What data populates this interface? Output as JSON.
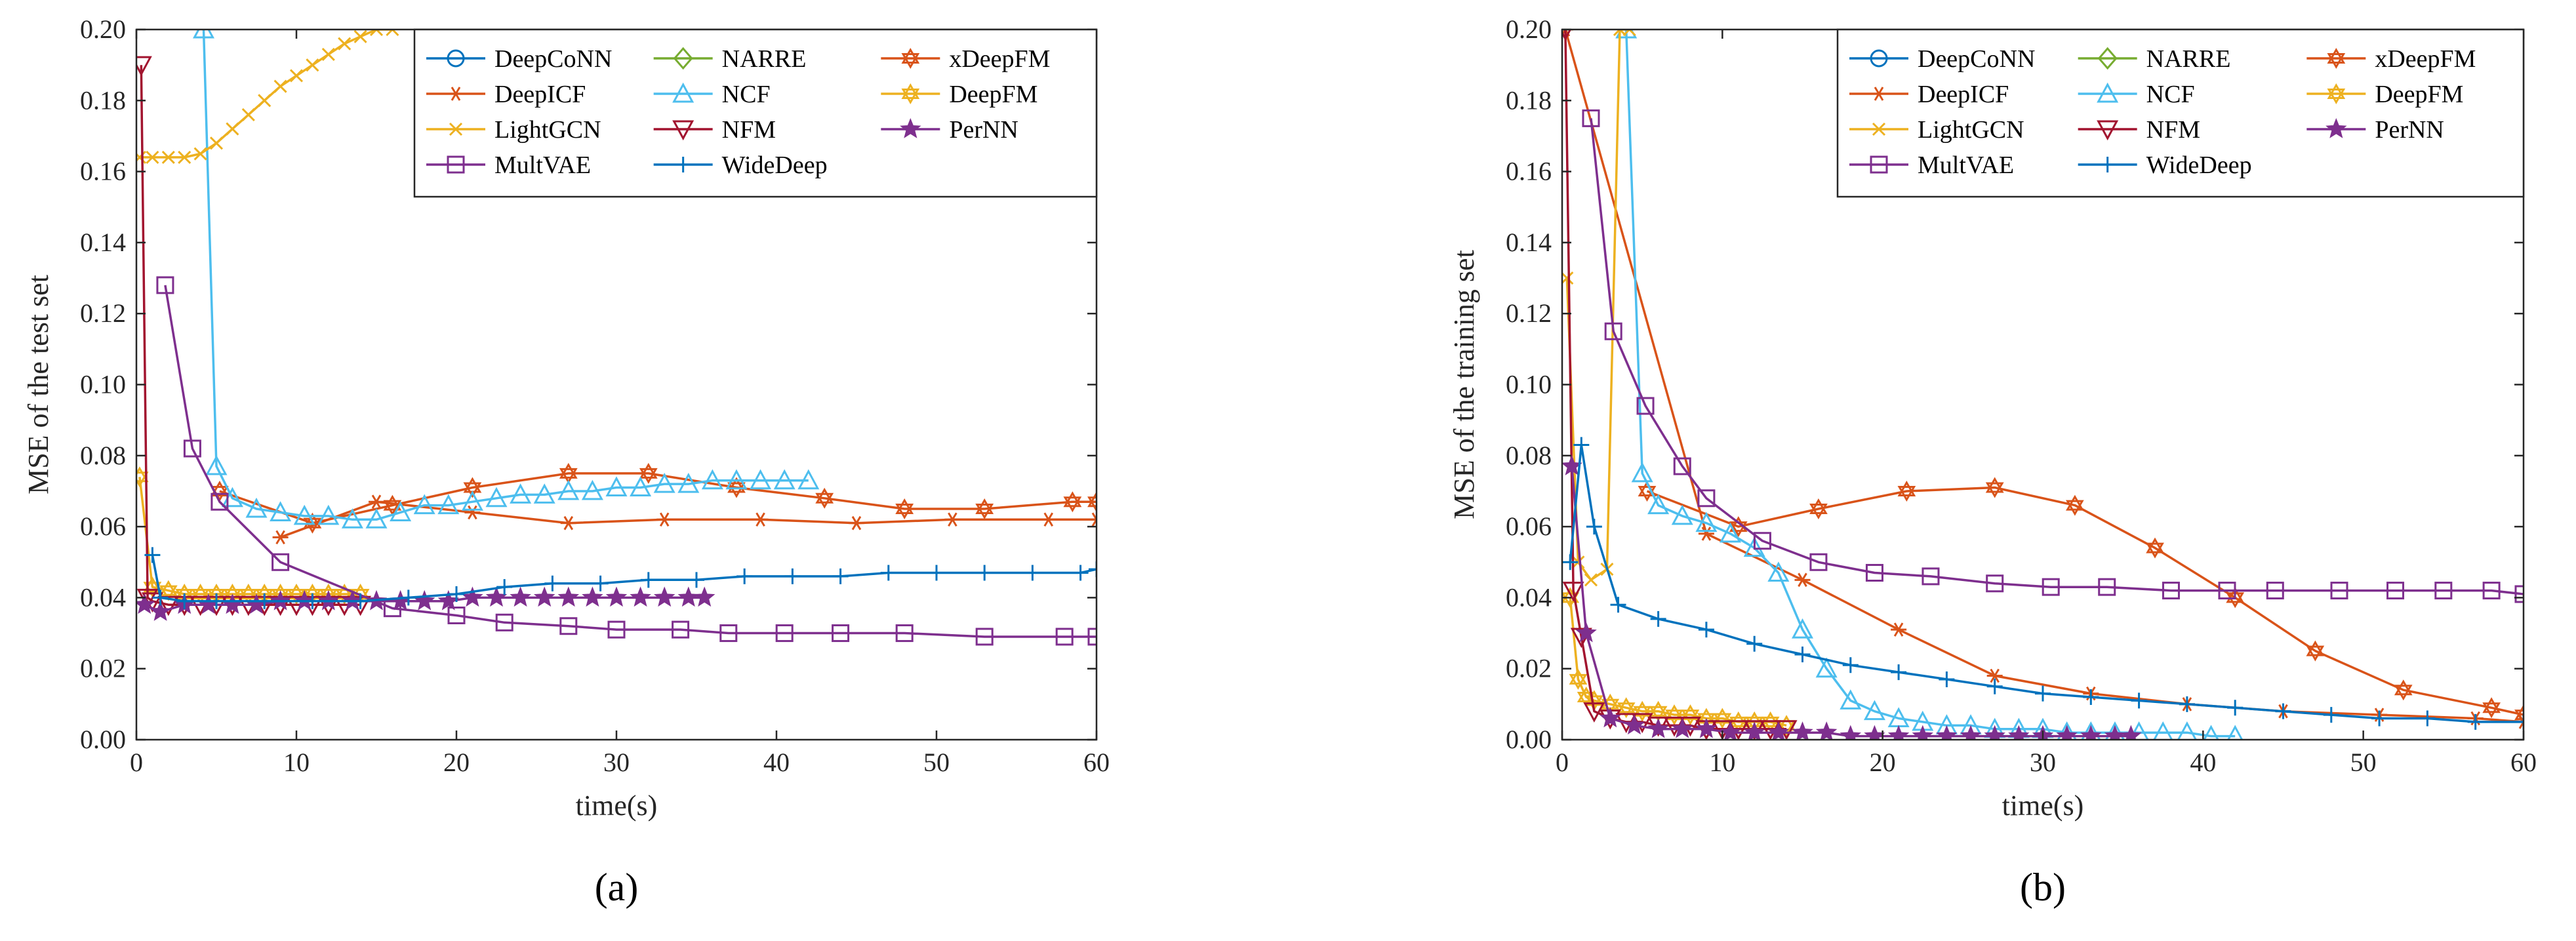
{
  "colors": {
    "DeepCoNN": "#0072BD",
    "NARRE": "#77AC30",
    "xDeepFM": "#D95319",
    "DeepICF": "#D95319",
    "NCF": "#4DBEEE",
    "DeepFM": "#EDB120",
    "LightGCN": "#EDB120",
    "NFM": "#A2142F",
    "PerNN": "#7E2F8E",
    "MultVAE": "#7E2F8E",
    "WideDeep": "#0072BD"
  },
  "chart_data": [
    {
      "type": "line",
      "panel_label": "(a)",
      "xlabel": "time(s)",
      "ylabel": "MSE of the test set",
      "xlim": [
        0,
        60
      ],
      "ylim": [
        0,
        0.2
      ],
      "xticks": [
        "0",
        "10",
        "20",
        "30",
        "40",
        "50",
        "60"
      ],
      "yticks": [
        "0.00",
        "0.02",
        "0.04",
        "0.06",
        "0.08",
        "0.10",
        "0.12",
        "0.14",
        "0.16",
        "0.18",
        "0.20"
      ],
      "legend_position": "top-right",
      "legend": [
        "DeepCoNN",
        "NARRE",
        "xDeepFM",
        "DeepICF",
        "NCF",
        "DeepFM",
        "LightGCN",
        "NFM",
        "PerNN",
        "MultVAE",
        "WideDeep"
      ],
      "series": [
        {
          "name": "DeepCoNN",
          "marker": "circle",
          "color": "#0072BD",
          "x": [],
          "y": []
        },
        {
          "name": "NARRE",
          "marker": "diamond",
          "color": "#77AC30",
          "x": [],
          "y": []
        },
        {
          "name": "xDeepFM",
          "marker": "hexagram",
          "color": "#D95319",
          "x": [
            5.2,
            11,
            16,
            21,
            27,
            32,
            37.5,
            43,
            48,
            53,
            58.5,
            60
          ],
          "y": [
            0.07,
            0.061,
            0.066,
            0.071,
            0.075,
            0.075,
            0.071,
            0.068,
            0.065,
            0.065,
            0.067,
            0.067
          ]
        },
        {
          "name": "DeepICF",
          "marker": "asterisk",
          "color": "#D95319",
          "x": [
            9,
            15,
            21,
            27,
            33,
            39,
            45,
            51,
            57,
            60
          ],
          "y": [
            0.057,
            0.067,
            0.064,
            0.061,
            0.062,
            0.062,
            0.061,
            0.062,
            0.062,
            0.062
          ]
        },
        {
          "name": "NCF",
          "marker": "triangle",
          "color": "#4DBEEE",
          "x": [
            4.2,
            5,
            6,
            7.5,
            9,
            10.5,
            12,
            13.5,
            15,
            16.5,
            18,
            19.5,
            21,
            22.5,
            24,
            25.5,
            27,
            28.5,
            30,
            31.5,
            33,
            34.5,
            36,
            37.5,
            39,
            40.5,
            42
          ],
          "y": [
            0.2,
            0.077,
            0.068,
            0.065,
            0.064,
            0.063,
            0.063,
            0.062,
            0.062,
            0.064,
            0.066,
            0.066,
            0.067,
            0.068,
            0.069,
            0.069,
            0.07,
            0.07,
            0.071,
            0.071,
            0.072,
            0.072,
            0.073,
            0.073,
            0.073,
            0.073,
            0.073
          ]
        },
        {
          "name": "DeepFM",
          "marker": "hexagram",
          "color": "#EDB120",
          "x": [
            0.2,
            1,
            2,
            3,
            4,
            5,
            6,
            7,
            8,
            9,
            10,
            11,
            12,
            13,
            14
          ],
          "y": [
            0.074,
            0.043,
            0.042,
            0.041,
            0.041,
            0.041,
            0.041,
            0.041,
            0.041,
            0.041,
            0.041,
            0.041,
            0.041,
            0.041,
            0.041
          ]
        },
        {
          "name": "LightGCN",
          "marker": "x",
          "color": "#EDB120",
          "x": [
            0.2,
            1,
            2,
            3,
            4,
            5,
            6,
            7,
            8,
            9,
            10,
            11,
            12,
            13,
            14,
            15,
            16
          ],
          "y": [
            0.164,
            0.164,
            0.164,
            0.164,
            0.165,
            0.168,
            0.172,
            0.176,
            0.18,
            0.184,
            0.187,
            0.19,
            0.193,
            0.196,
            0.198,
            0.2,
            0.2
          ]
        },
        {
          "name": "NFM",
          "marker": "triangle-down",
          "color": "#A2142F",
          "x": [
            0.3,
            0.7,
            1,
            2,
            3,
            4,
            5,
            6,
            7,
            8,
            9,
            10,
            11,
            12,
            13,
            14
          ],
          "y": [
            0.19,
            0.04,
            0.039,
            0.038,
            0.038,
            0.038,
            0.038,
            0.038,
            0.038,
            0.038,
            0.038,
            0.038,
            0.038,
            0.038,
            0.038,
            0.038
          ]
        },
        {
          "name": "PerNN",
          "marker": "star",
          "color": "#7E2F8E",
          "x": [
            0.5,
            1.5,
            3,
            4.5,
            6,
            7.5,
            9,
            10.5,
            12,
            13.5,
            15,
            16.5,
            18,
            19.5,
            21,
            22.5,
            24,
            25.5,
            27,
            28.5,
            30,
            31.5,
            33,
            34.5,
            35.5
          ],
          "y": [
            0.038,
            0.036,
            0.038,
            0.038,
            0.038,
            0.038,
            0.039,
            0.039,
            0.039,
            0.039,
            0.039,
            0.039,
            0.039,
            0.039,
            0.04,
            0.04,
            0.04,
            0.04,
            0.04,
            0.04,
            0.04,
            0.04,
            0.04,
            0.04,
            0.04
          ]
        },
        {
          "name": "MultVAE",
          "marker": "square",
          "color": "#7E2F8E",
          "x": [
            1.8,
            3.5,
            5.2,
            9,
            16,
            20,
            23,
            27,
            30,
            34,
            37,
            40.5,
            44,
            48,
            53,
            58,
            60
          ],
          "y": [
            0.128,
            0.082,
            0.067,
            0.05,
            0.037,
            0.035,
            0.033,
            0.032,
            0.031,
            0.031,
            0.03,
            0.03,
            0.03,
            0.03,
            0.029,
            0.029,
            0.029
          ]
        },
        {
          "name": "WideDeep",
          "marker": "plus",
          "color": "#0072BD",
          "x": [
            1,
            1.5,
            3,
            5,
            8,
            11,
            14,
            17,
            20,
            23,
            26,
            29,
            32,
            35,
            38,
            41,
            44,
            47,
            50,
            53,
            56,
            59,
            60
          ],
          "y": [
            0.052,
            0.04,
            0.039,
            0.039,
            0.039,
            0.039,
            0.039,
            0.04,
            0.041,
            0.043,
            0.044,
            0.044,
            0.045,
            0.045,
            0.046,
            0.046,
            0.046,
            0.047,
            0.047,
            0.047,
            0.047,
            0.047,
            0.048
          ]
        }
      ]
    },
    {
      "type": "line",
      "panel_label": "(b)",
      "xlabel": "time(s)",
      "ylabel": "MSE of the training set",
      "xlim": [
        0,
        60
      ],
      "ylim": [
        0,
        0.2
      ],
      "xticks": [
        "0",
        "10",
        "20",
        "30",
        "40",
        "50",
        "60"
      ],
      "yticks": [
        "0.00",
        "0.02",
        "0.04",
        "0.06",
        "0.08",
        "0.10",
        "0.12",
        "0.14",
        "0.16",
        "0.18",
        "0.20"
      ],
      "legend_position": "top-right",
      "legend": [
        "DeepCoNN",
        "NARRE",
        "xDeepFM",
        "DeepICF",
        "NCF",
        "DeepFM",
        "LightGCN",
        "NFM",
        "PerNN",
        "MultVAE",
        "WideDeep"
      ],
      "series": [
        {
          "name": "DeepCoNN",
          "marker": "circle",
          "color": "#0072BD",
          "x": [],
          "y": []
        },
        {
          "name": "NARRE",
          "marker": "diamond",
          "color": "#77AC30",
          "x": [],
          "y": []
        },
        {
          "name": "xDeepFM",
          "marker": "hexagram",
          "color": "#D95319",
          "x": [
            5.3,
            11,
            16,
            21.5,
            27,
            32,
            37,
            42,
            47,
            52.5,
            58,
            60
          ],
          "y": [
            0.07,
            0.06,
            0.065,
            0.07,
            0.071,
            0.066,
            0.054,
            0.04,
            0.025,
            0.014,
            0.009,
            0.007
          ]
        },
        {
          "name": "DeepICF",
          "marker": "asterisk",
          "color": "#D95319",
          "x": [
            0.2,
            9,
            15,
            21,
            27,
            33,
            39,
            45,
            51,
            57,
            60
          ],
          "y": [
            0.2,
            0.058,
            0.045,
            0.031,
            0.018,
            0.013,
            0.01,
            0.008,
            0.007,
            0.006,
            0.005
          ]
        },
        {
          "name": "NCF",
          "marker": "triangle",
          "color": "#4DBEEE",
          "x": [
            4,
            5,
            6,
            7.5,
            9,
            10.5,
            12,
            13.5,
            15,
            16.5,
            18,
            19.5,
            21,
            22.5,
            24,
            25.5,
            27,
            28.5,
            30,
            31.5,
            33,
            34.5,
            36,
            37.5,
            39,
            40.5,
            42
          ],
          "y": [
            0.2,
            0.075,
            0.066,
            0.063,
            0.061,
            0.058,
            0.054,
            0.047,
            0.031,
            0.02,
            0.011,
            0.008,
            0.006,
            0.005,
            0.004,
            0.004,
            0.003,
            0.003,
            0.003,
            0.002,
            0.002,
            0.002,
            0.002,
            0.002,
            0.002,
            0.001,
            0.001
          ]
        },
        {
          "name": "DeepFM",
          "marker": "hexagram",
          "color": "#EDB120",
          "x": [
            0.5,
            1,
            1.5,
            2,
            3,
            4,
            5,
            6,
            7,
            8,
            9,
            10,
            11,
            12,
            13,
            14
          ],
          "y": [
            0.04,
            0.017,
            0.012,
            0.011,
            0.01,
            0.009,
            0.008,
            0.008,
            0.007,
            0.007,
            0.006,
            0.006,
            0.005,
            0.005,
            0.005,
            0.004
          ]
        },
        {
          "name": "LightGCN",
          "marker": "x",
          "color": "#EDB120",
          "x": [
            0.3,
            1,
            1.8,
            2.8,
            3.6,
            4.2
          ],
          "y": [
            0.13,
            0.05,
            0.045,
            0.048,
            0.2,
            0.2
          ]
        },
        {
          "name": "NFM",
          "marker": "triangle-down",
          "color": "#A2142F",
          "x": [
            0.2,
            0.7,
            1.2,
            2,
            3,
            4,
            5,
            6,
            7,
            8,
            9,
            10,
            11,
            12,
            13,
            14
          ],
          "y": [
            0.2,
            0.042,
            0.029,
            0.008,
            0.006,
            0.005,
            0.005,
            0.004,
            0.004,
            0.004,
            0.003,
            0.003,
            0.003,
            0.003,
            0.003,
            0.003
          ]
        },
        {
          "name": "PerNN",
          "marker": "star",
          "color": "#7E2F8E",
          "x": [
            0.6,
            1.5,
            3,
            4.5,
            6,
            7.5,
            9,
            10.5,
            12,
            13.5,
            15,
            16.5,
            18,
            19.5,
            21,
            22.5,
            24,
            25.5,
            27,
            28.5,
            30,
            31.5,
            33,
            34.5,
            35.5
          ],
          "y": [
            0.077,
            0.03,
            0.006,
            0.004,
            0.003,
            0.003,
            0.003,
            0.002,
            0.002,
            0.002,
            0.002,
            0.002,
            0.001,
            0.001,
            0.001,
            0.001,
            0.001,
            0.001,
            0.001,
            0.001,
            0.001,
            0.001,
            0.001,
            0.001,
            0.001
          ]
        },
        {
          "name": "MultVAE",
          "marker": "square",
          "color": "#7E2F8E",
          "x": [
            1.8,
            3.2,
            5.2,
            7.5,
            9,
            12.5,
            16,
            19.5,
            23,
            27,
            30.5,
            34,
            38,
            41.5,
            44.5,
            48.5,
            52,
            55,
            58,
            60
          ],
          "y": [
            0.175,
            0.115,
            0.094,
            0.077,
            0.068,
            0.056,
            0.05,
            0.047,
            0.046,
            0.044,
            0.043,
            0.043,
            0.042,
            0.042,
            0.042,
            0.042,
            0.042,
            0.042,
            0.042,
            0.041
          ]
        },
        {
          "name": "WideDeep",
          "marker": "plus",
          "color": "#0072BD",
          "x": [
            0.5,
            1.2,
            2,
            3.5,
            6,
            9,
            12,
            15,
            18,
            21,
            24,
            27,
            30,
            33,
            36,
            39,
            42,
            45,
            48,
            51,
            54,
            57,
            60
          ],
          "y": [
            0.05,
            0.083,
            0.06,
            0.038,
            0.034,
            0.031,
            0.027,
            0.024,
            0.021,
            0.019,
            0.017,
            0.015,
            0.013,
            0.012,
            0.011,
            0.01,
            0.009,
            0.008,
            0.007,
            0.006,
            0.006,
            0.005,
            0.005
          ]
        }
      ]
    }
  ]
}
